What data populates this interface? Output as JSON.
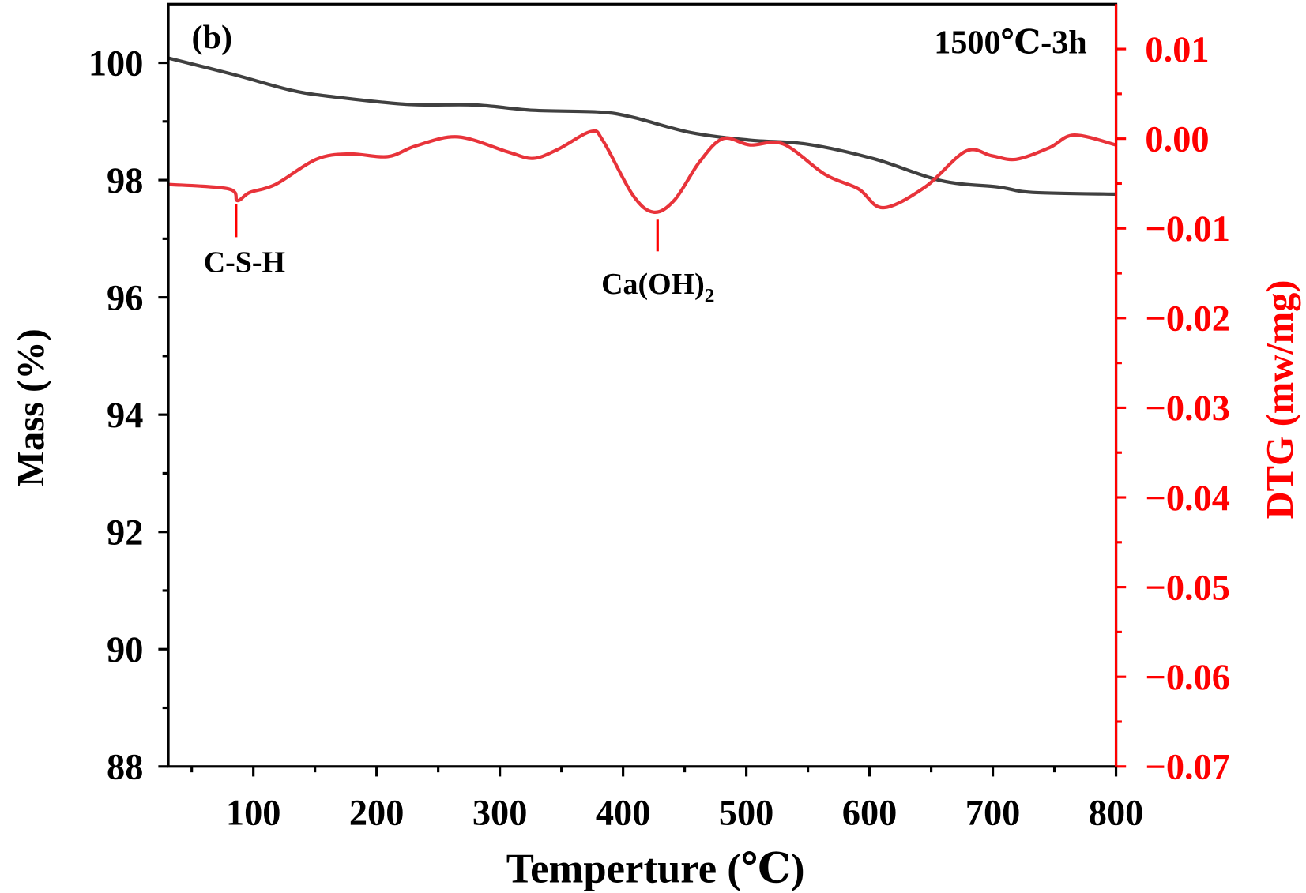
{
  "chart_data": {
    "type": "line",
    "panel_label": "(b)",
    "annotation_condition": "1500℃-3h",
    "xlabel": "Temperture (℃)",
    "ylabel_left": "Mass (%)",
    "ylabel_right": "DTG (mw/mg)",
    "xlim": [
      31,
      800
    ],
    "ylim_left": [
      88,
      101
    ],
    "ylim_right": [
      -0.07,
      0.015
    ],
    "xticks": [
      100,
      200,
      300,
      400,
      500,
      600,
      700,
      800
    ],
    "yticks_left": [
      88,
      90,
      92,
      94,
      96,
      98,
      100
    ],
    "yticks_right": [
      "0.01",
      "0.00",
      "−0.01",
      "−0.02",
      "−0.03",
      "−0.04",
      "−0.05",
      "−0.06",
      "−0.07"
    ],
    "yticks_right_values": [
      0.01,
      0.0,
      -0.01,
      -0.02,
      -0.03,
      -0.04,
      -0.05,
      -0.06,
      -0.07
    ],
    "grid": false,
    "colors": {
      "mass": "#404040",
      "dtg": "#e8333a",
      "right_axis": "#ff0000"
    },
    "series": [
      {
        "axis": "left",
        "x": [
          31,
          84,
          131,
          165,
          226,
          280,
          327,
          381,
          408,
          455,
          503,
          550,
          604,
          658,
          705,
          732,
          800
        ],
        "y": [
          100.08,
          99.8,
          99.53,
          99.42,
          99.29,
          99.28,
          99.19,
          99.16,
          99.07,
          98.81,
          98.68,
          98.61,
          98.36,
          97.99,
          97.88,
          97.79,
          97.76
        ]
      },
      {
        "axis": "right",
        "x": [
          31,
          80,
          87,
          97,
          118,
          151,
          178,
          209,
          232,
          266,
          307,
          327,
          347,
          374,
          384,
          408,
          425,
          442,
          462,
          481,
          503,
          530,
          564,
          591,
          611,
          645,
          678,
          699,
          719,
          746,
          766,
          800
        ],
        "y": [
          -0.0051,
          -0.0056,
          -0.0069,
          -0.006,
          -0.0051,
          -0.0023,
          -0.0017,
          -0.002,
          -0.0008,
          0.0002,
          -0.0015,
          -0.0022,
          -0.0012,
          0.0008,
          -0.0003,
          -0.0063,
          -0.0082,
          -0.0068,
          -0.0026,
          0.0,
          -0.0007,
          -0.0006,
          -0.004,
          -0.0056,
          -0.0077,
          -0.0054,
          -0.0014,
          -0.0019,
          -0.0023,
          -0.001,
          0.0004,
          -0.0007
        ]
      }
    ],
    "annotations": [
      {
        "text": "C-S-H",
        "x": 86
      },
      {
        "text": "Ca(OH)",
        "subscript": "2",
        "x": 428
      }
    ]
  }
}
